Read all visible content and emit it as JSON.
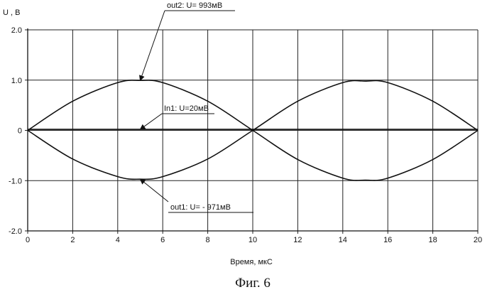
{
  "chart_data": {
    "type": "line",
    "ylabel": "U , В",
    "xlabel": "Время, мкС",
    "xlim": [
      0,
      20
    ],
    "ylim": [
      -2.0,
      2.0
    ],
    "x_ticks": [
      0,
      2,
      4,
      6,
      8,
      10,
      12,
      14,
      16,
      18,
      20
    ],
    "x_tick_labels": [
      "0",
      "2",
      "4",
      "6",
      "8",
      "10",
      "12",
      "14",
      "16",
      "18",
      "20"
    ],
    "y_ticks": [
      2.0,
      1.0,
      0,
      -1.0,
      -2.0
    ],
    "y_tick_labels": [
      "2.0",
      "1.0",
      "0",
      "-1.0",
      "-2.0"
    ],
    "grid": true,
    "series": [
      {
        "name": "out2",
        "x": [
          0,
          2,
          4,
          5,
          6,
          8,
          10,
          12,
          14,
          15,
          16,
          18,
          20
        ],
        "y": [
          0,
          0.58,
          0.95,
          0.993,
          0.95,
          0.58,
          0,
          -0.58,
          -0.95,
          -0.99,
          -0.95,
          -0.58,
          0
        ]
      },
      {
        "name": "out1",
        "x": [
          0,
          2,
          4,
          5,
          6,
          8,
          10,
          12,
          14,
          15,
          16,
          18,
          20
        ],
        "y": [
          0,
          -0.57,
          -0.92,
          -0.971,
          -0.92,
          -0.57,
          0,
          0.58,
          0.95,
          0.98,
          0.95,
          0.58,
          0
        ]
      },
      {
        "name": "In1",
        "x": [
          0,
          20
        ],
        "y": [
          0.02,
          0.02
        ]
      }
    ],
    "annotations": [
      {
        "text": "out2:  U= 993мВ",
        "series": "out2",
        "x": 5,
        "y": 0.993
      },
      {
        "text": "In1:  U=20мВ",
        "series": "In1",
        "x": 5,
        "y": 0.02
      },
      {
        "text": "out1:  U= - 971мВ",
        "series": "out1",
        "x": 5,
        "y": -0.971
      }
    ],
    "caption": "Фиг. 6"
  }
}
